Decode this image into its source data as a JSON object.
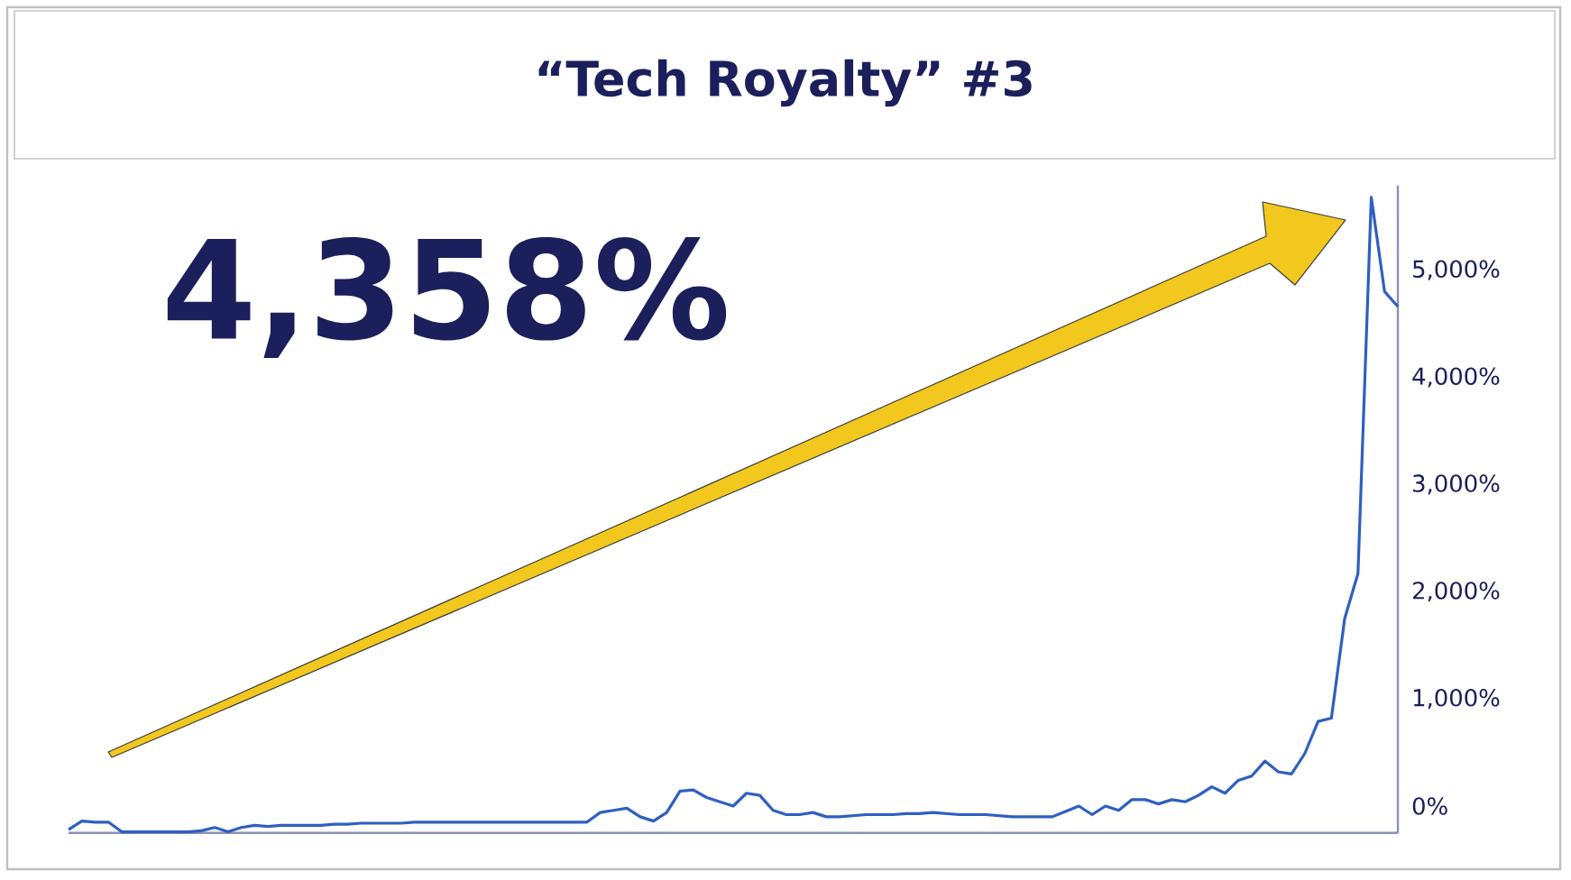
{
  "chart_data": {
    "type": "line",
    "title": "“Tech Royalty” #3",
    "annotations": [
      "4,358%"
    ],
    "color": "#2f5fc0",
    "marker": "none",
    "tick_labels": "y",
    "ylim": [
      -250,
      5790
    ],
    "yticks": [
      {
        "value": 0,
        "label": "0%"
      },
      {
        "value": 1000,
        "label": "1,000%"
      },
      {
        "value": 2000,
        "label": "2,000%"
      },
      {
        "value": 3000,
        "label": "3,000%"
      },
      {
        "value": 4000,
        "label": "4,000%"
      },
      {
        "value": 5000,
        "label": "5,000%"
      }
    ],
    "categories": [
      null,
      null,
      null,
      null,
      null,
      null,
      null,
      null,
      null,
      null,
      null,
      null,
      null,
      null,
      null,
      null,
      null,
      null,
      null,
      null,
      null,
      null,
      null,
      null,
      null,
      null,
      null,
      null,
      null,
      null,
      null,
      null,
      null,
      null,
      null,
      null,
      null,
      null,
      null,
      null,
      null,
      null,
      null,
      null,
      null,
      null,
      null,
      null,
      null,
      null,
      null,
      null,
      null,
      null,
      null,
      null,
      null,
      null,
      null,
      null,
      null,
      null,
      null,
      null,
      null,
      null,
      null,
      null,
      null,
      null,
      null,
      null,
      null,
      null,
      null,
      null,
      null,
      null,
      null,
      null,
      null,
      null,
      null,
      null,
      null,
      null,
      null,
      null,
      null,
      null,
      null,
      null,
      null,
      null,
      null,
      null,
      null,
      null,
      null,
      null,
      null
    ],
    "values": [
      -220,
      -140,
      -150,
      -150,
      -240,
      -240,
      -240,
      -240,
      -240,
      -240,
      -230,
      -200,
      -240,
      -200,
      -180,
      -190,
      -180,
      -180,
      -180,
      -180,
      -170,
      -170,
      -160,
      -160,
      -160,
      -160,
      -150,
      -150,
      -150,
      -150,
      -150,
      -150,
      -150,
      -150,
      -150,
      -150,
      -150,
      -150,
      -150,
      -150,
      -60,
      -40,
      -20,
      -100,
      -140,
      -60,
      140,
      150,
      80,
      40,
      0,
      120,
      100,
      -40,
      -80,
      -80,
      -60,
      -100,
      -100,
      -90,
      -80,
      -80,
      -80,
      -70,
      -70,
      -60,
      -70,
      -80,
      -80,
      -80,
      -90,
      -100,
      -100,
      -100,
      -100,
      -50,
      0,
      -80,
      0,
      -40,
      60,
      60,
      20,
      60,
      40,
      100,
      180,
      120,
      240,
      280,
      420,
      320,
      300,
      490,
      790,
      820,
      1750,
      2170,
      5680,
      4800,
      4660
    ]
  }
}
